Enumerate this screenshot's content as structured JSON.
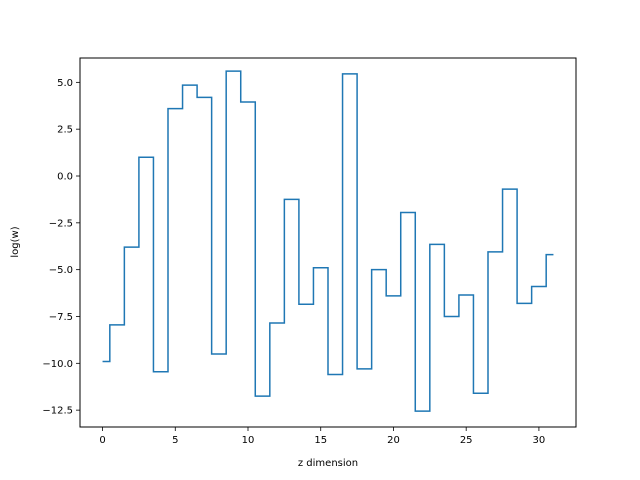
{
  "chart_data": {
    "type": "line",
    "drawstyle": "steps-mid",
    "title": "",
    "xlabel": "z dimension",
    "ylabel": "log(w)",
    "xlim": [
      -1.55,
      32.55
    ],
    "ylim": [
      -13.4,
      6.3
    ],
    "xticks": [
      0,
      5,
      10,
      15,
      20,
      25,
      30
    ],
    "xtick_labels": [
      "0",
      "5",
      "10",
      "15",
      "20",
      "25",
      "30"
    ],
    "yticks": [
      -12.5,
      -10.0,
      -7.5,
      -5.0,
      -2.5,
      0.0,
      2.5,
      5.0
    ],
    "ytick_labels": [
      "−12.5",
      "−10.0",
      "−7.5",
      "−5.0",
      "−2.5",
      "0.0",
      "2.5",
      "5.0"
    ],
    "grid": false,
    "series": [
      {
        "color": "#1f77b4",
        "x": [
          0,
          1,
          2,
          3,
          4,
          5,
          6,
          7,
          8,
          9,
          10,
          11,
          12,
          13,
          14,
          15,
          16,
          17,
          18,
          19,
          20,
          21,
          22,
          23,
          24,
          25,
          26,
          27,
          28,
          29,
          30,
          31
        ],
        "y": [
          -9.9,
          -7.95,
          -3.8,
          1.0,
          -10.45,
          3.6,
          4.85,
          4.2,
          -9.5,
          5.6,
          3.95,
          -11.75,
          -7.85,
          -1.25,
          -6.85,
          -4.9,
          -10.6,
          5.45,
          -10.3,
          -5.0,
          -6.4,
          -1.95,
          -12.55,
          -3.65,
          -7.5,
          -6.35,
          -11.6,
          -4.05,
          -0.7,
          -6.8,
          -5.9,
          -4.2
        ]
      }
    ]
  }
}
